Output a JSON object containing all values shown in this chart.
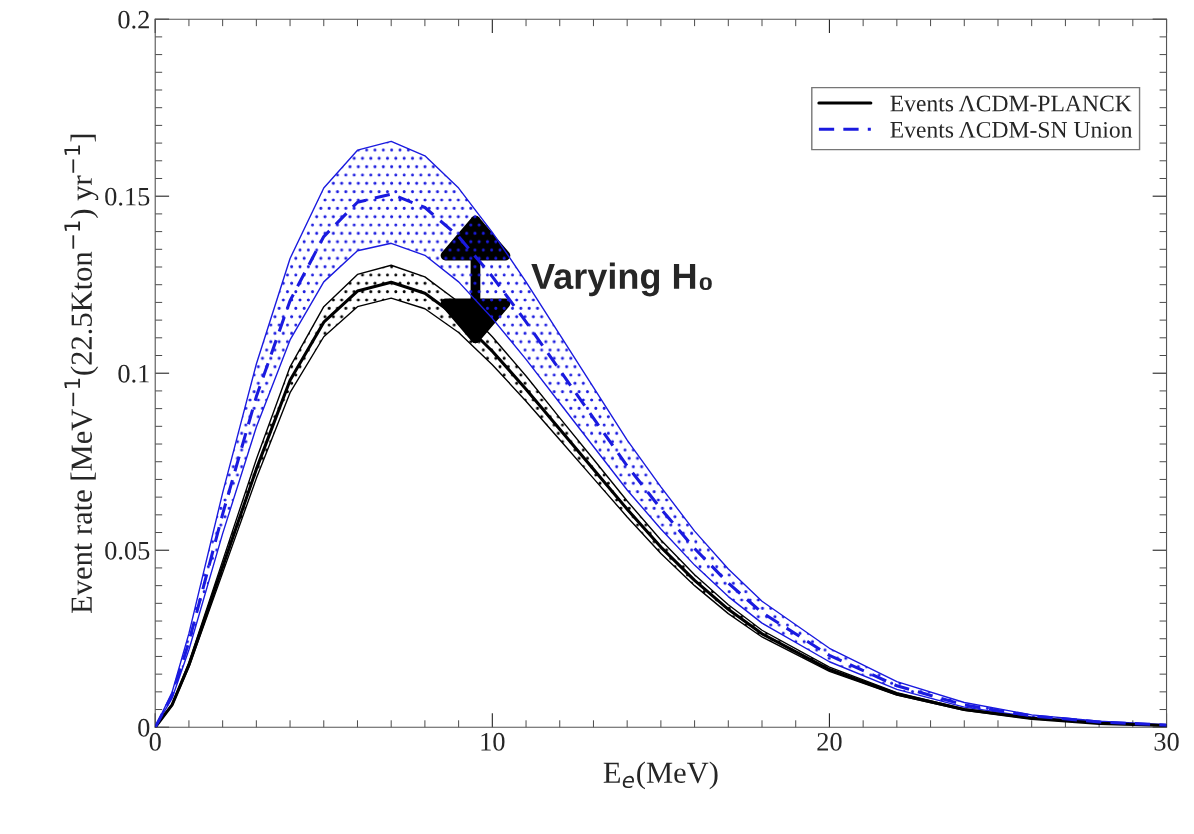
{
  "chart_data": {
    "type": "line",
    "xlabel": "E$_{e}$(MeV)",
    "ylabel": "Event rate [MeV$^{−1}$(22.5Kton$^{−1}$) yr$^{−1}$]",
    "x": [
      0,
      0.5,
      1,
      2,
      3,
      4,
      5,
      6,
      7,
      8,
      9,
      10,
      11,
      12,
      13,
      14,
      15,
      16,
      17,
      18,
      20,
      22,
      24,
      26,
      28,
      30
    ],
    "series": [
      {
        "name": "Events ΛCDM-PLANCK",
        "color": "#000000",
        "line_style": "solid",
        "values": [
          0,
          0.0063,
          0.0176,
          0.0453,
          0.0729,
          0.098,
          0.1144,
          0.1232,
          0.1257,
          0.1226,
          0.1156,
          0.1062,
          0.0955,
          0.0842,
          0.0729,
          0.0616,
          0.0509,
          0.0415,
          0.0333,
          0.0264,
          0.0163,
          0.0094,
          0.005,
          0.0025,
          0.0011,
          0.0005
        ],
        "lower": [
          0,
          0.0061,
          0.017,
          0.0436,
          0.0703,
          0.0945,
          0.1103,
          0.1188,
          0.1212,
          0.1182,
          0.1115,
          0.1024,
          0.0921,
          0.0812,
          0.0703,
          0.0594,
          0.0491,
          0.04,
          0.0321,
          0.0255,
          0.0158,
          0.0091,
          0.0048,
          0.0024,
          0.0011,
          0.0005
        ],
        "upper": [
          0,
          0.0065,
          0.0183,
          0.047,
          0.0757,
          0.1018,
          0.1188,
          0.1279,
          0.1305,
          0.1272,
          0.1201,
          0.1103,
          0.0992,
          0.0874,
          0.0757,
          0.0639,
          0.0529,
          0.0431,
          0.0346,
          0.0274,
          0.017,
          0.0098,
          0.0052,
          0.0026,
          0.0012,
          0.0005
        ]
      },
      {
        "name": "Events ΛCDM-SN Union",
        "color": "#1a1adf",
        "line_style": "dashed",
        "values": [
          0,
          0.009,
          0.0241,
          0.0602,
          0.0934,
          0.1205,
          0.1386,
          0.1483,
          0.1506,
          0.1468,
          0.1386,
          0.1273,
          0.1145,
          0.1009,
          0.0873,
          0.0738,
          0.0617,
          0.0505,
          0.0407,
          0.0324,
          0.0203,
          0.0117,
          0.0063,
          0.0032,
          0.0015,
          0.0006
        ],
        "lower": [
          0,
          0.0082,
          0.0219,
          0.0547,
          0.0848,
          0.1094,
          0.1258,
          0.1346,
          0.1367,
          0.1333,
          0.1258,
          0.1155,
          0.1039,
          0.0916,
          0.0793,
          0.067,
          0.056,
          0.0458,
          0.0369,
          0.0294,
          0.0185,
          0.0107,
          0.0057,
          0.0029,
          0.0014,
          0.0005
        ],
        "upper": [
          0,
          0.0099,
          0.0265,
          0.0662,
          0.1026,
          0.1324,
          0.1523,
          0.163,
          0.1655,
          0.1614,
          0.1523,
          0.1398,
          0.1258,
          0.1109,
          0.096,
          0.0811,
          0.0679,
          0.0554,
          0.0447,
          0.0356,
          0.0223,
          0.0129,
          0.007,
          0.0035,
          0.0017,
          0.0007
        ]
      }
    ],
    "annotations": [
      {
        "text": "Varying H₀",
        "x": 9.5,
        "y": 0.146
      }
    ],
    "xlim": [
      0,
      30
    ],
    "xticks": [
      0,
      10,
      20,
      30
    ],
    "ylim": [
      0,
      0.2
    ],
    "yticks": [
      0,
      0.05,
      0.1,
      0.15,
      0.2
    ],
    "grid": false,
    "legend": "top right",
    "marker": "none"
  }
}
